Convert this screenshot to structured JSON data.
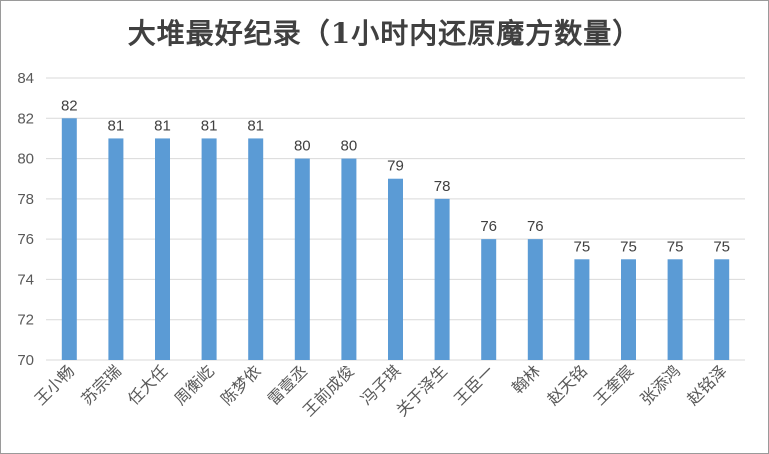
{
  "chart_data": {
    "type": "bar",
    "title": "大堆最好纪录（1小时内还原魔方数量）",
    "xlabel": "",
    "ylabel": "",
    "ylim": [
      70,
      84
    ],
    "yticks": [
      70,
      72,
      74,
      76,
      78,
      80,
      82,
      84
    ],
    "grid": true,
    "legend": "none",
    "bar_color": "#5b9bd5",
    "categories": [
      "王小畅",
      "苏宗瑞",
      "任大任",
      "周衡屹",
      "陈梦依",
      "雷壹丞",
      "王前成俊",
      "冯子琪",
      "关于泽生",
      "王臣一",
      "翰林",
      "赵天铭",
      "王奎宸",
      "张添鸿",
      "赵铭泽"
    ],
    "values": [
      82,
      81,
      81,
      81,
      81,
      80,
      80,
      79,
      78,
      76,
      76,
      75,
      75,
      75,
      75
    ]
  }
}
